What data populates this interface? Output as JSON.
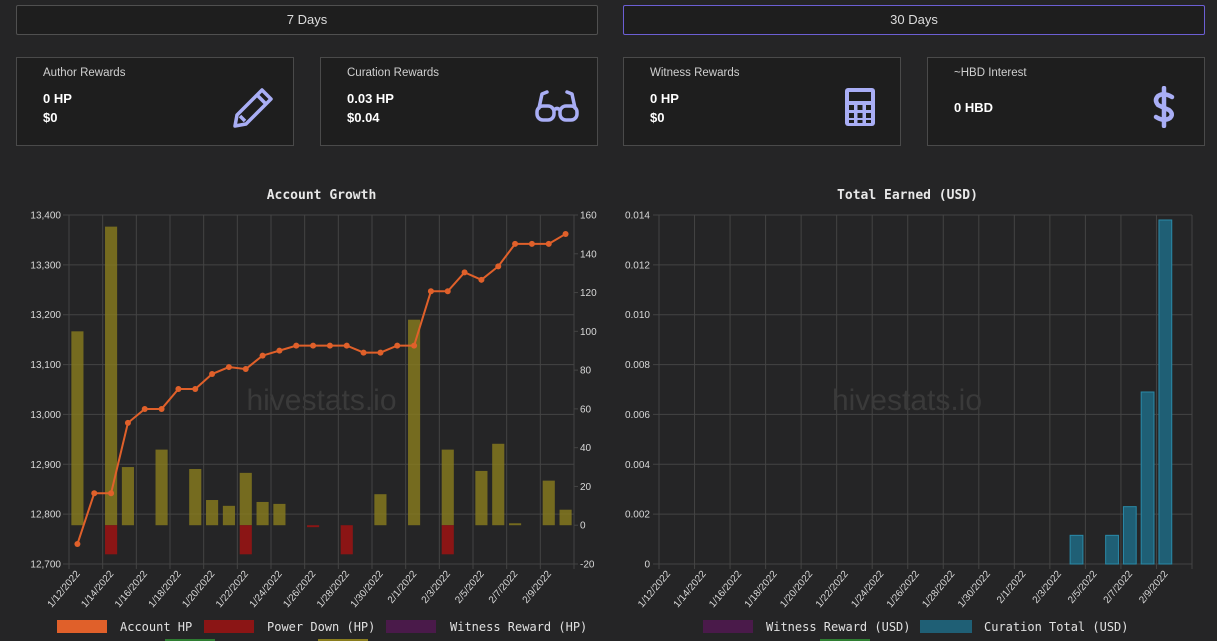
{
  "range_buttons": [
    "7 Days",
    "30 Days"
  ],
  "cards": [
    {
      "title": "Author Rewards",
      "v1": "0 HP",
      "v2": "$0",
      "icon": "pencil-icon"
    },
    {
      "title": "Curation Rewards",
      "v1": "0.03 HP",
      "v2": "$0.04",
      "icon": "glasses-icon"
    },
    {
      "title": "Witness Rewards",
      "v1": "0 HP",
      "v2": "$0",
      "icon": "calculator-icon"
    },
    {
      "title": "~HBD Interest",
      "v1": "0 HBD",
      "v2": "",
      "icon": "dollar-icon"
    }
  ],
  "colors": {
    "icon": "#a9aef5",
    "account_hp": "#e0602a",
    "power_down": "#8b1515",
    "witness_hp": "#4a1a4a",
    "author_bars": "#8a7d1e",
    "curation_usd": "#1f5f75",
    "witness_usd": "#4a1a4a"
  },
  "watermark": "hivestats.io",
  "chart_data": [
    {
      "type": "bar",
      "title": "Account Growth",
      "x": [
        "1/12/2022",
        "1/13/2022",
        "1/14/2022",
        "1/15/2022",
        "1/16/2022",
        "1/17/2022",
        "1/18/2022",
        "1/19/2022",
        "1/20/2022",
        "1/21/2022",
        "1/22/2022",
        "1/23/2022",
        "1/24/2022",
        "1/25/2022",
        "1/26/2022",
        "1/27/2022",
        "1/28/2022",
        "1/29/2022",
        "1/30/2022",
        "1/31/2022",
        "2/1/2022",
        "2/2/2022",
        "2/3/2022",
        "2/4/2022",
        "2/5/2022",
        "2/6/2022",
        "2/7/2022",
        "2/8/2022",
        "2/9/2022",
        "2/10/2022"
      ],
      "x_tick_labels": [
        "1/12/2022",
        "1/14/2022",
        "1/16/2022",
        "1/18/2022",
        "1/20/2022",
        "1/22/2022",
        "1/24/2022",
        "1/26/2022",
        "1/28/2022",
        "1/30/2022",
        "2/1/2022",
        "2/3/2022",
        "2/5/2022",
        "2/7/2022",
        "2/9/2022"
      ],
      "y_left": {
        "min": 12700,
        "max": 13400,
        "ticks": [
          "12,700",
          "12,800",
          "12,900",
          "13,000",
          "13,100",
          "13,200",
          "13,300",
          "13,400"
        ]
      },
      "y_right": {
        "min": -20,
        "max": 160,
        "ticks": [
          "-20",
          "0",
          "20",
          "40",
          "60",
          "80",
          "100",
          "120",
          "140",
          "160"
        ]
      },
      "series": [
        {
          "name": "Account HP",
          "type": "line",
          "axis": "left",
          "values": [
            12740,
            12842,
            12842,
            12983,
            13011,
            13011,
            13051,
            13051,
            13081,
            13095,
            13091,
            13118,
            13128,
            13138,
            13138,
            13138,
            13138,
            13124,
            13124,
            13138,
            13138,
            13247,
            13247,
            13285,
            13270,
            13297,
            13342,
            13342,
            13342,
            13362
          ]
        },
        {
          "name": "Power Down (HP)",
          "type": "bar",
          "axis": "right",
          "values": [
            0,
            0,
            -15,
            0,
            0,
            0,
            0,
            0,
            0,
            0,
            -15,
            0,
            0,
            0,
            -1,
            0,
            -15,
            0,
            0,
            0,
            0,
            0,
            -15,
            0,
            0,
            0,
            0,
            0,
            0,
            0
          ]
        },
        {
          "name": "Witness Reward (HP)",
          "type": "bar",
          "axis": "right",
          "values": [
            0,
            0,
            0,
            0,
            0,
            0,
            0,
            0,
            0,
            0,
            0,
            0,
            0,
            0,
            0,
            0,
            0,
            0,
            0,
            0,
            0,
            0,
            0,
            0,
            0,
            0,
            0,
            0,
            0,
            0
          ]
        },
        {
          "name": "",
          "type": "bar",
          "axis": "right",
          "values": [
            100,
            0,
            154,
            30,
            0,
            39,
            0,
            29,
            13,
            10,
            27,
            12,
            11,
            0,
            0,
            0,
            0,
            0,
            16,
            0,
            106,
            0,
            39,
            0,
            28,
            42,
            1,
            0,
            23,
            8
          ]
        }
      ],
      "legend": [
        "Account HP",
        "Power Down (HP)",
        "Witness Reward (HP)"
      ]
    },
    {
      "type": "bar",
      "title": "Total Earned (USD)",
      "x": [
        "1/12/2022",
        "1/13/2022",
        "1/14/2022",
        "1/15/2022",
        "1/16/2022",
        "1/17/2022",
        "1/18/2022",
        "1/19/2022",
        "1/20/2022",
        "1/21/2022",
        "1/22/2022",
        "1/23/2022",
        "1/24/2022",
        "1/25/2022",
        "1/26/2022",
        "1/27/2022",
        "1/28/2022",
        "1/29/2022",
        "1/30/2022",
        "1/31/2022",
        "2/1/2022",
        "2/2/2022",
        "2/3/2022",
        "2/4/2022",
        "2/5/2022",
        "2/6/2022",
        "2/7/2022",
        "2/8/2022",
        "2/9/2022",
        "2/10/2022"
      ],
      "x_tick_labels": [
        "1/12/2022",
        "1/14/2022",
        "1/16/2022",
        "1/18/2022",
        "1/20/2022",
        "1/22/2022",
        "1/24/2022",
        "1/26/2022",
        "1/28/2022",
        "1/30/2022",
        "2/1/2022",
        "2/3/2022",
        "2/5/2022",
        "2/7/2022",
        "2/9/2022"
      ],
      "y": {
        "min": 0,
        "max": 0.014,
        "ticks": [
          "0",
          "0.002",
          "0.004",
          "0.006",
          "0.008",
          "0.010",
          "0.012",
          "0.014"
        ]
      },
      "series": [
        {
          "name": "Witness Reward (USD)",
          "values": [
            0,
            0,
            0,
            0,
            0,
            0,
            0,
            0,
            0,
            0,
            0,
            0,
            0,
            0,
            0,
            0,
            0,
            0,
            0,
            0,
            0,
            0,
            0,
            0,
            0,
            0,
            0,
            0,
            0,
            0
          ]
        },
        {
          "name": "Curation Total (USD)",
          "values": [
            0,
            0,
            0,
            0,
            0,
            0,
            0,
            0,
            0,
            0,
            0,
            0,
            0,
            0,
            0,
            0,
            0,
            0,
            0,
            0,
            0,
            0,
            0,
            0.00115,
            0,
            0.00115,
            0.0023,
            0.0069,
            0.0138,
            0
          ]
        }
      ],
      "legend": [
        "Witness Reward (USD)",
        "Curation Total (USD)"
      ]
    }
  ]
}
